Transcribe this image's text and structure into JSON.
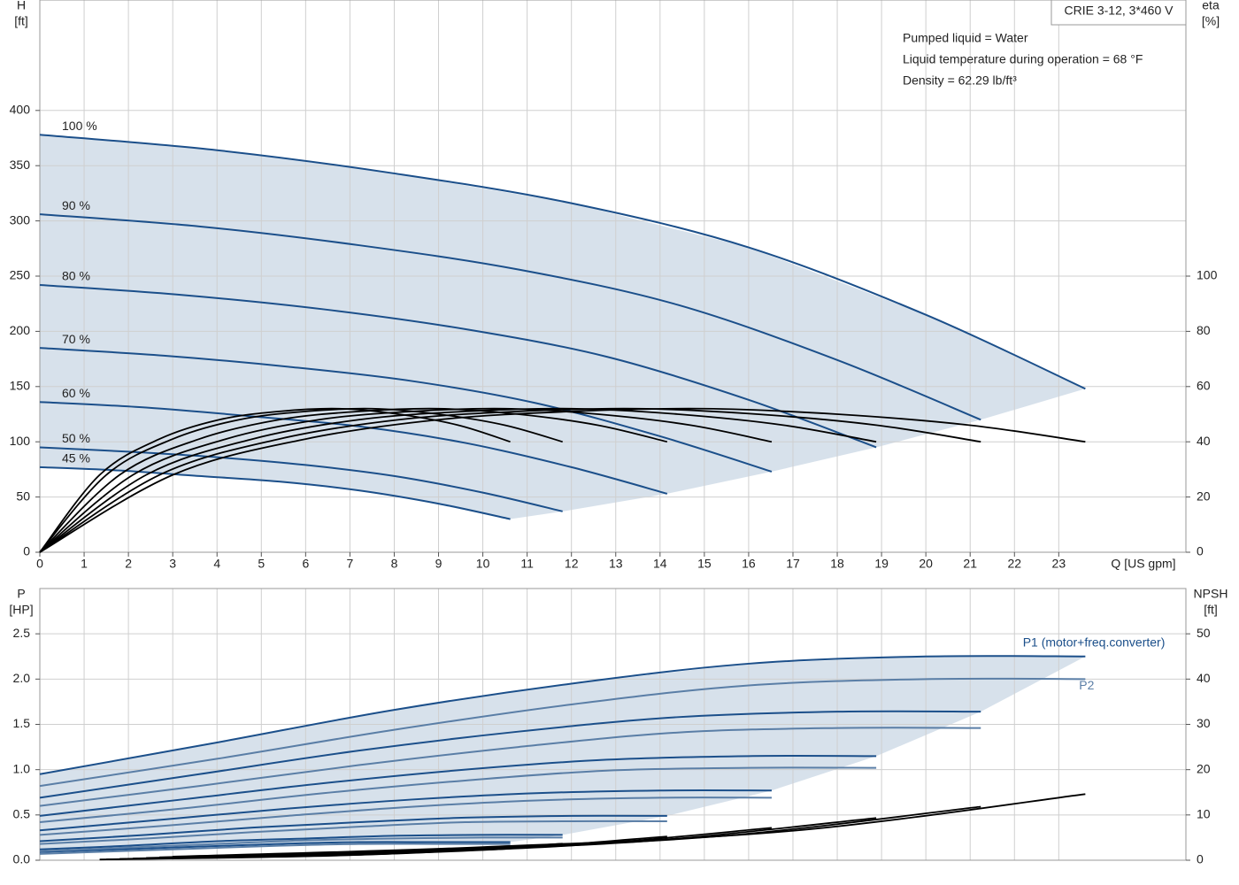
{
  "chart_data": [
    {
      "type": "line",
      "title": "CRIE 3-12, 3*460 V",
      "annotations": [
        "Pumped liquid = Water",
        "Liquid temperature during operation = 68 °F",
        "Density = 62.29 lb/ft³"
      ],
      "y_label": "H",
      "y_unit": "[ft]",
      "y2_label": "eta",
      "y2_unit": "[%]",
      "x_label": "Q [US gpm]",
      "xlim": [
        0,
        25.87
      ],
      "xticks": [
        0,
        1,
        2,
        3,
        4,
        5,
        6,
        7,
        8,
        9,
        10,
        11,
        12,
        13,
        14,
        15,
        16,
        17,
        18,
        19,
        20,
        21,
        22,
        23
      ],
      "ylim": [
        0,
        500
      ],
      "yticks": [
        0,
        50,
        100,
        150,
        200,
        250,
        300,
        350,
        400
      ],
      "y2lim": [
        0,
        200
      ],
      "y2ticks": [
        0,
        20,
        40,
        60,
        80,
        100
      ],
      "grid": true,
      "fill": "#d3dee9",
      "series": [
        {
          "name": "100 %",
          "color": "#1b4f8a",
          "x": [
            0,
            4,
            8,
            12,
            16,
            20,
            23.6
          ],
          "values": [
            378,
            364,
            343,
            316,
            276,
            215,
            148
          ]
        },
        {
          "name": "90 %",
          "color": "#1b4f8a",
          "x": [
            0,
            3.6,
            7.2,
            10.8,
            14.4,
            18,
            21.24
          ],
          "values": [
            306,
            295,
            278,
            256,
            224,
            174,
            120
          ]
        },
        {
          "name": "80 %",
          "color": "#1b4f8a",
          "x": [
            0,
            3.2,
            6.4,
            9.6,
            12.8,
            16,
            18.88
          ],
          "values": [
            242,
            233,
            220,
            202,
            177,
            138,
            95
          ]
        },
        {
          "name": "70 %",
          "color": "#1b4f8a",
          "x": [
            0,
            2.8,
            5.6,
            8.4,
            11.2,
            14,
            16.52
          ],
          "values": [
            185,
            178,
            168,
            155,
            135,
            105,
            73
          ]
        },
        {
          "name": "60 %",
          "color": "#1b4f8a",
          "x": [
            0,
            2.4,
            4.8,
            7.2,
            9.6,
            12,
            14.16
          ],
          "values": [
            136,
            131,
            123,
            114,
            99,
            77,
            53
          ]
        },
        {
          "name": "50 %",
          "color": "#1b4f8a",
          "x": [
            0,
            2,
            4,
            6,
            8,
            10,
            11.8
          ],
          "values": [
            95,
            91,
            86,
            79,
            69,
            54,
            37
          ]
        },
        {
          "name": "45 %",
          "color": "#1b4f8a",
          "x": [
            0,
            1.8,
            3.6,
            5.4,
            7.2,
            9,
            10.62
          ],
          "values": [
            77,
            74,
            69,
            64,
            56,
            44,
            30
          ]
        },
        {
          "color": "#000000",
          "axis": "y2",
          "x": [
            0,
            3,
            6,
            9,
            12,
            15,
            18,
            21,
            23.6
          ],
          "values": [
            0,
            28,
            41,
            48,
            51,
            52,
            50,
            46,
            40
          ]
        },
        {
          "color": "#000000",
          "axis": "y2",
          "x": [
            0,
            2.7,
            5.4,
            8.1,
            10.8,
            13.5,
            16.2,
            18.9,
            21.24
          ],
          "values": [
            0,
            28,
            41,
            48,
            51,
            52,
            50,
            46,
            40
          ]
        },
        {
          "color": "#000000",
          "axis": "y2",
          "x": [
            0,
            2.4,
            4.8,
            7.2,
            9.6,
            12,
            14.4,
            16.8,
            18.88
          ],
          "values": [
            0,
            28,
            41,
            48,
            51,
            52,
            50,
            46,
            40
          ]
        },
        {
          "color": "#000000",
          "axis": "y2",
          "x": [
            0,
            2.1,
            4.2,
            6.3,
            8.4,
            10.5,
            12.6,
            14.7,
            16.52
          ],
          "values": [
            0,
            28,
            41,
            48,
            51,
            52,
            50,
            46,
            40
          ]
        },
        {
          "color": "#000000",
          "axis": "y2",
          "x": [
            0,
            1.8,
            3.6,
            5.4,
            7.2,
            9,
            10.8,
            12.6,
            14.16
          ],
          "values": [
            0,
            28,
            41,
            48,
            51,
            52,
            50,
            46,
            40
          ]
        },
        {
          "color": "#000000",
          "axis": "y2",
          "x": [
            0,
            1.5,
            3,
            4.5,
            6,
            7.5,
            9,
            10.5,
            11.8
          ],
          "values": [
            0,
            28,
            41,
            48,
            51,
            52,
            50,
            46,
            40
          ]
        },
        {
          "color": "#000000",
          "axis": "y2",
          "x": [
            0,
            1.35,
            2.7,
            4.05,
            5.4,
            6.75,
            8.1,
            9.45,
            10.62
          ],
          "values": [
            0,
            28,
            41,
            48,
            51,
            52,
            50,
            46,
            40
          ]
        }
      ]
    },
    {
      "type": "line",
      "y_label": "P",
      "y_unit": "[HP]",
      "y2_label": "NPSH",
      "y2_unit": "[ft]",
      "xlim": [
        0,
        25.87
      ],
      "ylim": [
        0,
        3
      ],
      "yticks": [
        {
          "value": 0,
          "label": "0.0"
        },
        0.5,
        {
          "value": 1,
          "label": "1.0"
        },
        1.5,
        {
          "value": 2,
          "label": "2.0"
        },
        2.5
      ],
      "y2lim": [
        0,
        60
      ],
      "y2ticks": [
        0,
        10,
        20,
        30,
        40,
        50
      ],
      "grid": true,
      "fill": "#d3dee9",
      "series": [
        {
          "name": "P1 (motor+freq.converter)",
          "color": "#1b4f8a",
          "x": [
            0,
            4,
            8,
            12,
            16,
            20,
            23.6
          ],
          "values": [
            0.95,
            1.3,
            1.66,
            1.95,
            2.17,
            2.25,
            2.25
          ]
        },
        {
          "color": "#1b4f8a",
          "x": [
            0,
            3.6,
            7.2,
            10.8,
            14.4,
            18,
            21.24
          ],
          "values": [
            0.69,
            0.95,
            1.21,
            1.42,
            1.58,
            1.64,
            1.64
          ]
        },
        {
          "color": "#1b4f8a",
          "x": [
            0,
            3.2,
            6.4,
            9.6,
            12.8,
            16,
            18.88
          ],
          "values": [
            0.49,
            0.67,
            0.85,
            1.0,
            1.11,
            1.15,
            1.15
          ]
        },
        {
          "color": "#1b4f8a",
          "x": [
            0,
            2.8,
            5.6,
            8.4,
            11.2,
            14,
            16.52
          ],
          "values": [
            0.33,
            0.45,
            0.57,
            0.67,
            0.74,
            0.77,
            0.77
          ]
        },
        {
          "color": "#1b4f8a",
          "x": [
            0,
            2.4,
            4.8,
            7.2,
            9.6,
            12,
            14.16
          ],
          "values": [
            0.21,
            0.28,
            0.36,
            0.42,
            0.47,
            0.49,
            0.49
          ]
        },
        {
          "color": "#1b4f8a",
          "x": [
            0,
            2,
            4,
            6,
            8,
            10,
            11.8
          ],
          "values": [
            0.12,
            0.16,
            0.21,
            0.24,
            0.27,
            0.28,
            0.28
          ]
        },
        {
          "color": "#1b4f8a",
          "x": [
            0,
            1.8,
            3.6,
            5.4,
            7.2,
            9,
            10.62
          ],
          "values": [
            0.09,
            0.12,
            0.15,
            0.18,
            0.2,
            0.2,
            0.2
          ]
        },
        {
          "name": "P2",
          "color": "#5a7ea6",
          "x": [
            0,
            4,
            8,
            12,
            16,
            20,
            23.6
          ],
          "values": [
            0.82,
            1.12,
            1.44,
            1.72,
            1.93,
            2.0,
            2.0
          ]
        },
        {
          "color": "#5a7ea6",
          "x": [
            0,
            3.6,
            7.2,
            10.8,
            14.4,
            18,
            21.24
          ],
          "values": [
            0.6,
            0.82,
            1.05,
            1.25,
            1.41,
            1.46,
            1.46
          ]
        },
        {
          "color": "#5a7ea6",
          "x": [
            0,
            3.2,
            6.4,
            9.6,
            12.8,
            16,
            18.88
          ],
          "values": [
            0.42,
            0.57,
            0.74,
            0.88,
            0.99,
            1.02,
            1.02
          ]
        },
        {
          "color": "#5a7ea6",
          "x": [
            0,
            2.8,
            5.6,
            8.4,
            11.2,
            14,
            16.52
          ],
          "values": [
            0.28,
            0.38,
            0.49,
            0.59,
            0.66,
            0.69,
            0.69
          ]
        },
        {
          "color": "#5a7ea6",
          "x": [
            0,
            2.4,
            4.8,
            7.2,
            9.6,
            12,
            14.16
          ],
          "values": [
            0.18,
            0.24,
            0.31,
            0.37,
            0.42,
            0.43,
            0.43
          ]
        },
        {
          "color": "#5a7ea6",
          "x": [
            0,
            2,
            4,
            6,
            8,
            10,
            11.8
          ],
          "values": [
            0.1,
            0.14,
            0.18,
            0.22,
            0.24,
            0.25,
            0.25
          ]
        },
        {
          "color": "#5a7ea6",
          "x": [
            0,
            1.8,
            3.6,
            5.4,
            7.2,
            9,
            10.62
          ],
          "values": [
            0.07,
            0.1,
            0.13,
            0.16,
            0.18,
            0.18,
            0.18
          ]
        },
        {
          "color": "#000000",
          "axis": "y2",
          "x": [
            3,
            10,
            17,
            23.6
          ],
          "values": [
            0.8,
            2.9,
            6.5,
            14.6
          ]
        },
        {
          "color": "#000000",
          "axis": "y2",
          "x": [
            2.7,
            9,
            15.3,
            21.24
          ],
          "values": [
            0.65,
            2.35,
            5.27,
            11.83
          ]
        },
        {
          "color": "#000000",
          "axis": "y2",
          "x": [
            2.4,
            8,
            13.6,
            18.88
          ],
          "values": [
            0.51,
            1.86,
            4.16,
            9.34
          ]
        },
        {
          "color": "#000000",
          "axis": "y2",
          "x": [
            2.1,
            7,
            11.9,
            16.52
          ],
          "values": [
            0.39,
            1.42,
            3.19,
            7.15
          ]
        },
        {
          "color": "#000000",
          "axis": "y2",
          "x": [
            1.8,
            6,
            10.2,
            14.16
          ],
          "values": [
            0.29,
            1.04,
            2.34,
            5.26
          ]
        },
        {
          "color": "#000000",
          "axis": "y2",
          "x": [
            1.5,
            5,
            8.5,
            11.8
          ],
          "values": [
            0.2,
            0.73,
            1.63,
            3.65
          ]
        },
        {
          "color": "#000000",
          "axis": "y2",
          "x": [
            1.35,
            4.5,
            7.65,
            10.62
          ],
          "values": [
            0.16,
            0.59,
            1.32,
            2.96
          ]
        }
      ]
    }
  ]
}
